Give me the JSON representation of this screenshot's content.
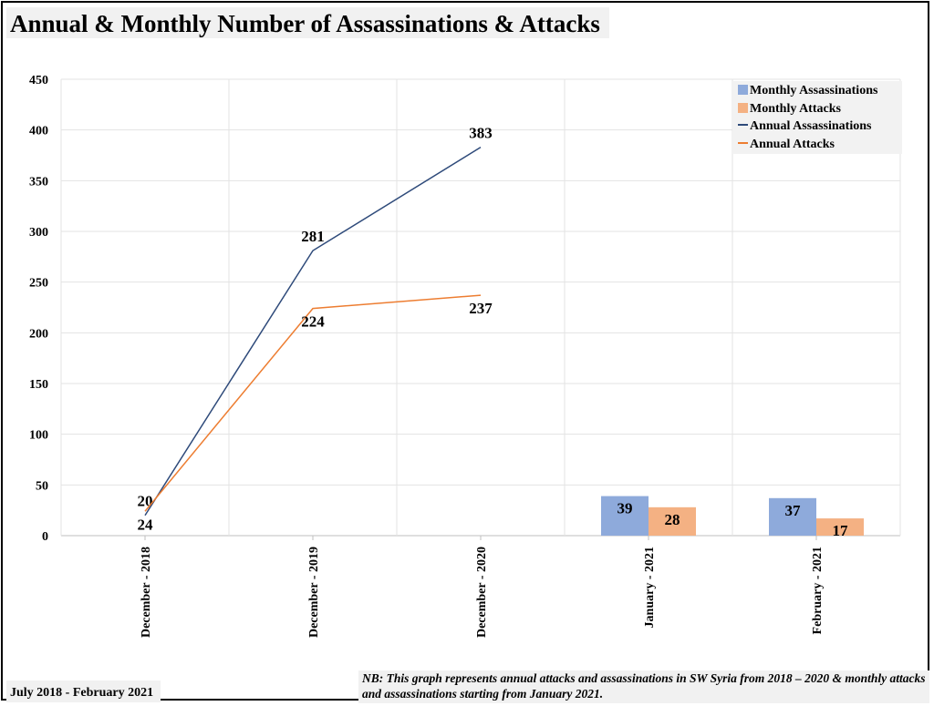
{
  "title": "Annual & Monthly Number of Assassinations & Attacks",
  "footer_left": "July 2018 - February 2021",
  "footer_note": "NB: This graph represents annual attacks and assassinations in SW Syria from 2018 – 2020 & monthly attacks and assassinations starting from January 2021.",
  "legend": {
    "monthly_assassinations": "Monthly Assassinations",
    "monthly_attacks": "Monthly Attacks",
    "annual_assassinations": "Annual Assassinations",
    "annual_attacks": "Annual Attacks"
  },
  "colors": {
    "monthly_assassinations": "#8eaadb",
    "monthly_attacks": "#f4b183",
    "annual_assassinations": "#2e4a7a",
    "annual_attacks": "#ed7d31"
  },
  "chart_data": {
    "type": "bar+line",
    "categories": [
      "December - 2018",
      "December - 2019",
      "December - 2020",
      "January - 2021",
      "February - 2021"
    ],
    "ylim": [
      0,
      450
    ],
    "yticks": [
      0,
      50,
      100,
      150,
      200,
      250,
      300,
      350,
      400,
      450
    ],
    "grid": true,
    "legend_position": "top-right",
    "lines": [
      {
        "name": "Annual Assassinations",
        "values": [
          20,
          281,
          383,
          null,
          null
        ]
      },
      {
        "name": "Annual Attacks",
        "values": [
          24,
          224,
          237,
          null,
          null
        ]
      }
    ],
    "bars": [
      {
        "name": "Monthly Assassinations",
        "values": [
          null,
          null,
          null,
          39,
          37
        ]
      },
      {
        "name": "Monthly Attacks",
        "values": [
          null,
          null,
          null,
          28,
          17
        ]
      }
    ]
  }
}
